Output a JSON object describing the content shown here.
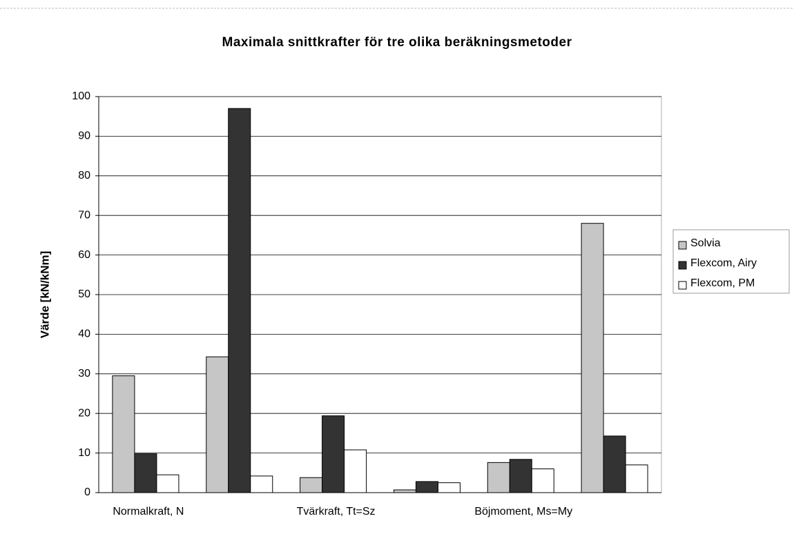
{
  "chart_data": {
    "type": "bar",
    "title": "Maximala snittkrafter för tre olika beräkningsmetoder",
    "y_label": "Värde [kN/kNm]",
    "categories": [
      "Normalkraft, N",
      null,
      "Tvärkraft, Tt=Sz",
      null,
      "Böjmoment, Ms=My",
      null
    ],
    "series": [
      {
        "name": "Solvia",
        "color": "#c6c6c6",
        "values": [
          29.5,
          34.3,
          3.8,
          0.7,
          7.6,
          68
        ]
      },
      {
        "name": "Flexcom, Airy",
        "color": "#333333",
        "values": [
          9.8,
          97,
          19.4,
          2.8,
          8.4,
          14.3
        ]
      },
      {
        "name": "Flexcom, PM",
        "color": "#ffffff",
        "values": [
          4.5,
          4.2,
          10.8,
          2.5,
          6,
          7
        ]
      }
    ],
    "ylim": [
      0,
      100
    ],
    "yticks": [
      0,
      10,
      20,
      30,
      40,
      50,
      60,
      70,
      80,
      90,
      100
    ],
    "grid": true,
    "legend": "right"
  }
}
